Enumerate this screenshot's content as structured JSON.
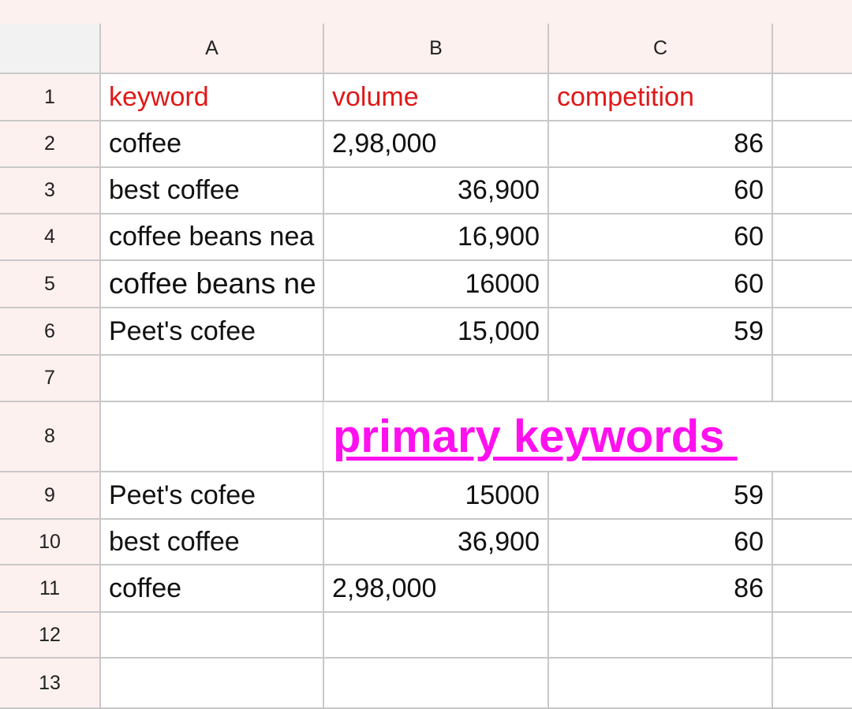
{
  "columns": [
    "A",
    "B",
    "C"
  ],
  "rows": [
    "1",
    "2",
    "3",
    "4",
    "5",
    "6",
    "7",
    "8",
    "9",
    "10",
    "11",
    "12",
    "13"
  ],
  "cells": {
    "r1": {
      "a": "keyword",
      "b": "volume",
      "c": "competition"
    },
    "r2": {
      "a": "coffee",
      "b": "2,98,000",
      "c": "86"
    },
    "r3": {
      "a": "best coffee",
      "b": "36,900",
      "c": "60"
    },
    "r4": {
      "a": "coffee beans nea",
      "b": "16,900",
      "c": "60"
    },
    "r5": {
      "a": "coffee beans ne",
      "b": "16000",
      "c": "60"
    },
    "r6": {
      "a": "Peet's cofee",
      "b": "15,000",
      "c": "59"
    },
    "r8": {
      "b": "primary keywords "
    },
    "r9": {
      "a": "Peet's cofee",
      "b": "15000",
      "c": "59"
    },
    "r10": {
      "a": "best coffee",
      "b": "36,900",
      "c": "60"
    },
    "r11": {
      "a": "coffee",
      "b": "2,98,000",
      "c": "86"
    }
  },
  "colors": {
    "header_text": "#e01818",
    "title_text": "#ff10ef",
    "header_bg": "#fdf1ef",
    "gridline": "#c8c8c8"
  }
}
